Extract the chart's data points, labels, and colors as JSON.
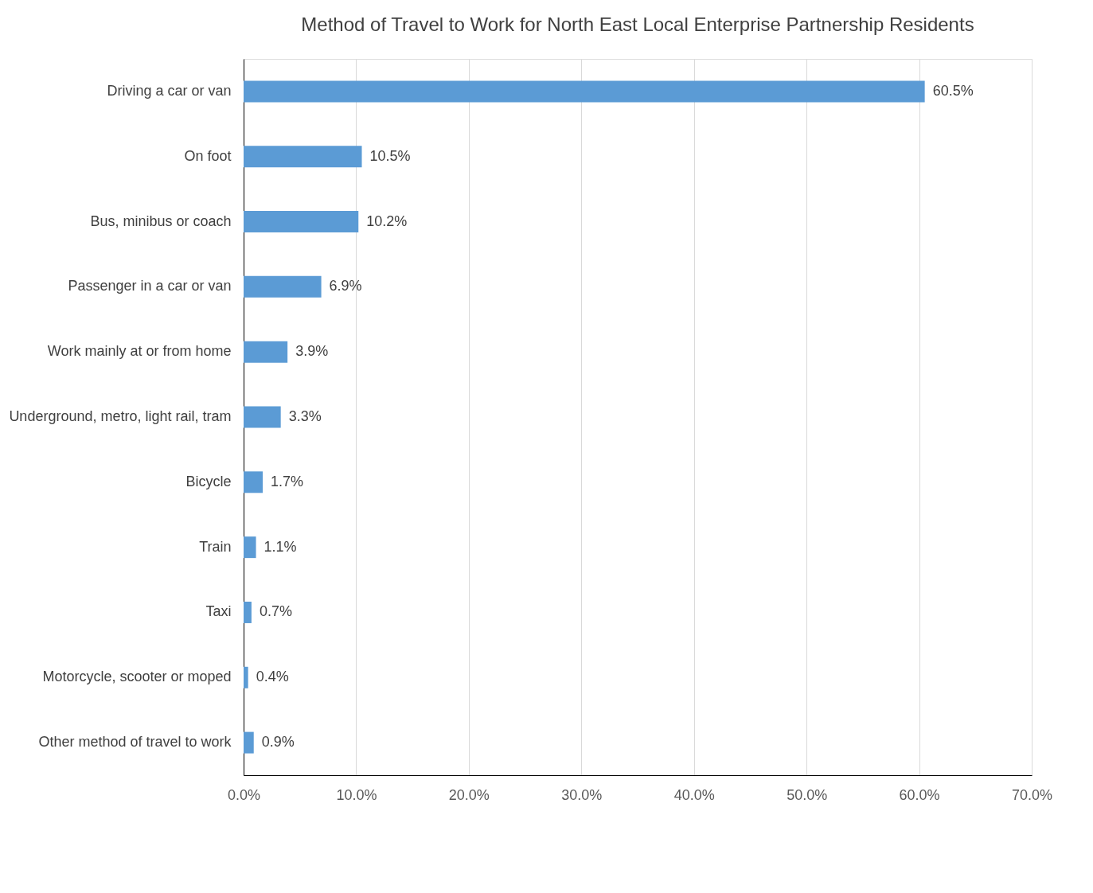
{
  "chart_data": {
    "type": "bar",
    "orientation": "horizontal",
    "title": "Method of Travel to Work for North East Local Enterprise Partnership Residents",
    "categories": [
      "Driving a car or van",
      "On foot",
      "Bus, minibus or coach",
      "Passenger in a car or van",
      "Work mainly at or from home",
      "Underground, metro, light rail, tram",
      "Bicycle",
      "Train",
      "Taxi",
      "Motorcycle, scooter or moped",
      "Other method of travel to work"
    ],
    "values": [
      60.5,
      10.5,
      10.2,
      6.9,
      3.9,
      3.3,
      1.7,
      1.1,
      0.7,
      0.4,
      0.9
    ],
    "value_labels": [
      "60.5%",
      "10.5%",
      "10.2%",
      "6.9%",
      "3.9%",
      "3.3%",
      "1.7%",
      "1.1%",
      "0.7%",
      "0.4%",
      "0.9%"
    ],
    "color": "#5b9bd5",
    "xlim": [
      0,
      70
    ],
    "xticks": [
      {
        "value": 0,
        "label": "0.0%"
      },
      {
        "value": 10,
        "label": "10.0%"
      },
      {
        "value": 20,
        "label": "20.0%"
      },
      {
        "value": 30,
        "label": "30.0%"
      },
      {
        "value": 40,
        "label": "40.0%"
      },
      {
        "value": 50,
        "label": "50.0%"
      },
      {
        "value": 60,
        "label": "60.0%"
      },
      {
        "value": 70,
        "label": "70.0%"
      }
    ],
    "grid": "x"
  }
}
